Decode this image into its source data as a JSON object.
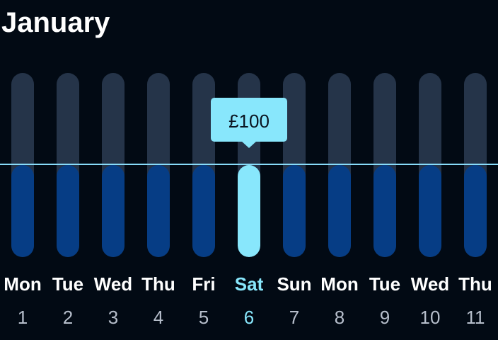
{
  "header": {
    "month": "January"
  },
  "chart_data": {
    "type": "bar",
    "max_value": 200,
    "reference_value": 100,
    "selected_index": 5,
    "tooltip_label": "£100",
    "days": [
      {
        "name": "Mon",
        "num": "1",
        "value": 100
      },
      {
        "name": "Tue",
        "num": "2",
        "value": 100
      },
      {
        "name": "Wed",
        "num": "3",
        "value": 100
      },
      {
        "name": "Thu",
        "num": "4",
        "value": 100
      },
      {
        "name": "Fri",
        "num": "5",
        "value": 100
      },
      {
        "name": "Sat",
        "num": "6",
        "value": 100
      },
      {
        "name": "Sun",
        "num": "7",
        "value": 100
      },
      {
        "name": "Mon",
        "num": "8",
        "value": 100
      },
      {
        "name": "Tue",
        "num": "9",
        "value": 100
      },
      {
        "name": "Wed",
        "num": "10",
        "value": 100
      },
      {
        "name": "Thu",
        "num": "11",
        "value": 100
      }
    ]
  },
  "colors": {
    "background": "#020a14",
    "track": "#253449",
    "fill": "#063d85",
    "accent": "#88e7fc",
    "text": "#ffffff",
    "muted_text": "#b6becb"
  }
}
